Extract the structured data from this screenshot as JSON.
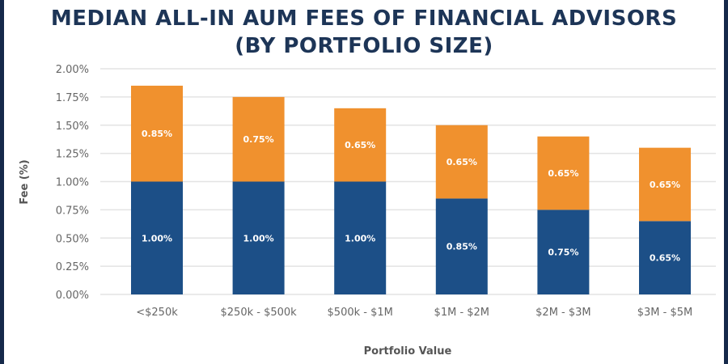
{
  "chart_data": {
    "type": "bar",
    "stacked": true,
    "title": "MEDIAN ALL-IN AUM FEES OF FINANCIAL ADVISORS (BY PORTFOLIO SIZE)",
    "title_lines": [
      "MEDIAN ALL-IN AUM FEES OF FINANCIAL ADVISORS",
      "(BY PORTFOLIO SIZE)"
    ],
    "xlabel": "Portfolio Value",
    "ylabel": "Fee (%)",
    "ylim": [
      0,
      2.0
    ],
    "yticks": [
      "0.00%",
      "0.25%",
      "0.50%",
      "0.75%",
      "1.00%",
      "1.25%",
      "1.50%",
      "1.75%",
      "2.00%"
    ],
    "grid": true,
    "categories": [
      "<$250k",
      "$250k - $500k",
      "$500k - $1M",
      "$1M - $2M",
      "$2M - $3M",
      "$3M - $5M"
    ],
    "series": [
      {
        "values": [
          1.0,
          1.0,
          1.0,
          0.85,
          0.75,
          0.65
        ],
        "labels": [
          "1.00%",
          "1.00%",
          "1.00%",
          "0.85%",
          "0.75%",
          "0.65%"
        ],
        "color": "#1c4f87"
      },
      {
        "values": [
          0.85,
          0.75,
          0.65,
          0.65,
          0.65,
          0.65
        ],
        "labels": [
          "0.85%",
          "0.75%",
          "0.65%",
          "0.65%",
          "0.65%",
          "0.65%"
        ],
        "color": "#f0912e"
      }
    ]
  }
}
